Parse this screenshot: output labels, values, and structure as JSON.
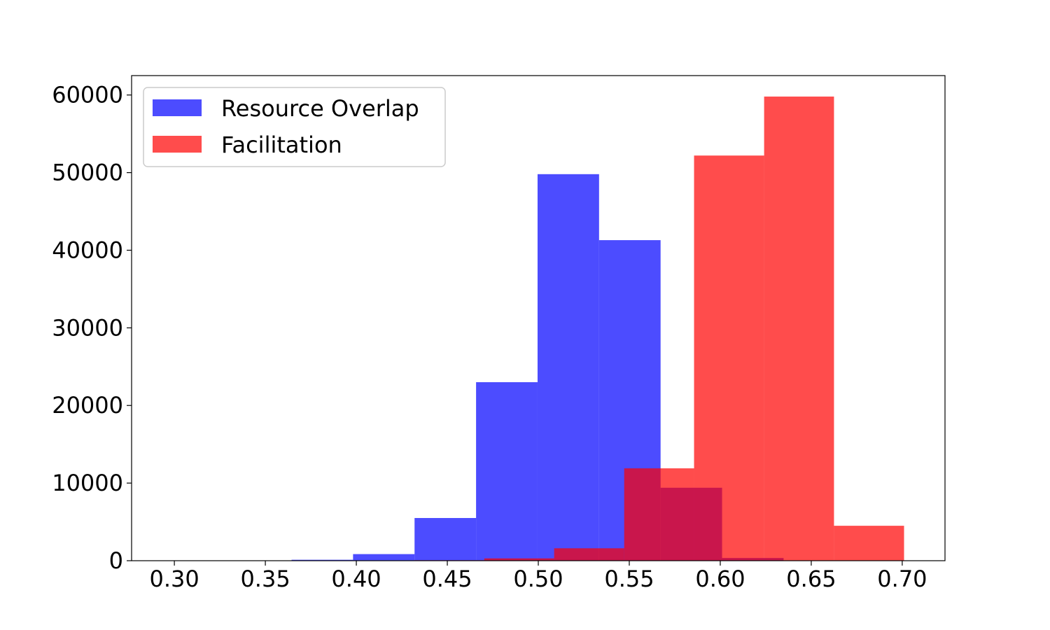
{
  "chart_data": {
    "type": "histogram",
    "title": "",
    "xlabel": "",
    "ylabel": "",
    "xlim": [
      0.2765,
      0.7235
    ],
    "ylim": [
      0,
      62500
    ],
    "x_ticks": [
      "0.30",
      "0.35",
      "0.40",
      "0.45",
      "0.50",
      "0.55",
      "0.60",
      "0.65",
      "0.70"
    ],
    "x_tick_values": [
      0.3,
      0.35,
      0.4,
      0.45,
      0.5,
      0.55,
      0.6,
      0.65,
      0.7
    ],
    "y_ticks": [
      "0",
      "10000",
      "20000",
      "30000",
      "40000",
      "50000",
      "60000"
    ],
    "y_tick_values": [
      0,
      10000,
      20000,
      30000,
      40000,
      50000,
      60000
    ],
    "grid": false,
    "legend_position": "top-left",
    "series": [
      {
        "name": "Resource Overlap",
        "color": "#0000ff",
        "opacity": 0.7,
        "bins": [
          0.2968,
          0.3306,
          0.3644,
          0.3982,
          0.432,
          0.4658,
          0.4996,
          0.5334,
          0.5672,
          0.601,
          0.6348
        ],
        "counts": [
          5,
          20,
          120,
          850,
          5500,
          23000,
          49800,
          41300,
          9400,
          350
        ]
      },
      {
        "name": "Facilitation",
        "color": "#ff0000",
        "opacity": 0.7,
        "bins": [
          0.3934,
          0.4318,
          0.4703,
          0.5087,
          0.5472,
          0.5856,
          0.6241,
          0.6625,
          0.701
        ],
        "counts": [
          10,
          60,
          300,
          1600,
          11900,
          52200,
          59800,
          4500
        ]
      }
    ]
  }
}
